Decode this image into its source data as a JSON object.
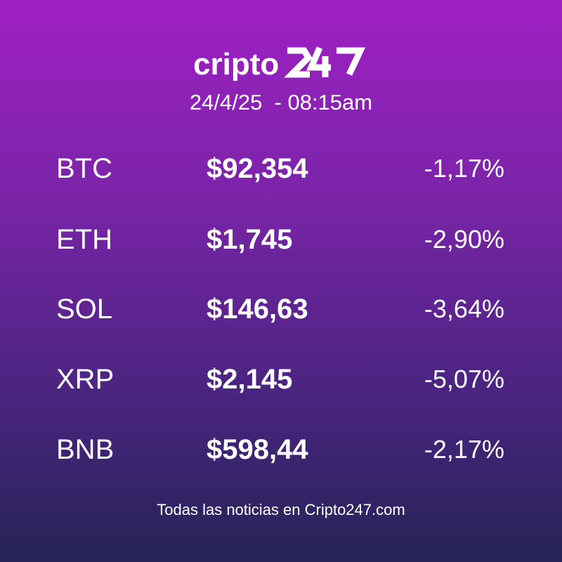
{
  "brand": {
    "logo_text": "cripto247"
  },
  "header": {
    "datetime": "24/4/25  - 08:15am"
  },
  "rows": [
    {
      "symbol": "BTC",
      "price": "$92,354",
      "change": "-1,17%"
    },
    {
      "symbol": "ETH",
      "price": "$1,745",
      "change": "-2,90%"
    },
    {
      "symbol": "SOL",
      "price": "$146,63",
      "change": "-3,64%"
    },
    {
      "symbol": "XRP",
      "price": "$2,145",
      "change": "-5,07%"
    },
    {
      "symbol": "BNB",
      "price": "$598,44",
      "change": "-2,17%"
    }
  ],
  "footer": {
    "text": "Todas las noticias en Cripto247.com"
  },
  "colors": {
    "gradient_top": "#a020c4",
    "gradient_bottom": "#262456",
    "text": "#ffffff"
  }
}
